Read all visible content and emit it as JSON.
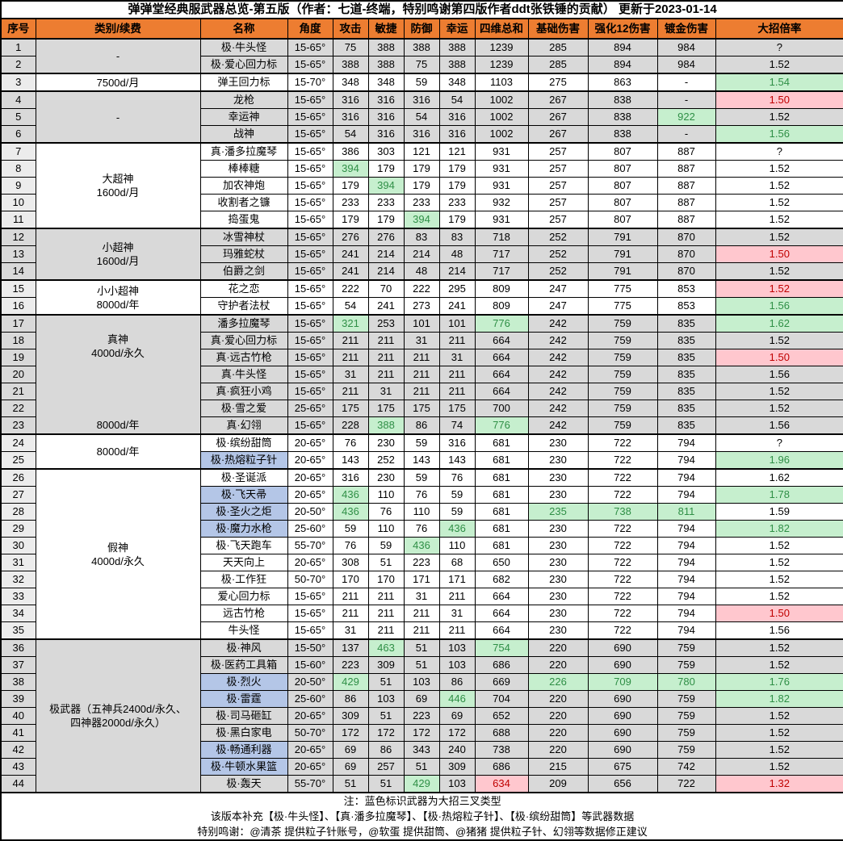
{
  "title": "弹弹堂经典服武器总览-第五版（作者：七道-终端，特别鸣谢第四版作者ddt张铁锤的贡献） 更新于2023-01-14",
  "columns": [
    "序号",
    "类别/续费",
    "名称",
    "角度",
    "攻击",
    "敏捷",
    "防御",
    "幸运",
    "四维总和",
    "基础伤害",
    "强化12伤害",
    "镀金伤害",
    "大招倍率"
  ],
  "colors": {
    "header_bg": "#ED7D31",
    "grey_row_bg": "#D9D9D9",
    "white_row_bg": "#FFFFFF",
    "index_col_bg": "#ECECEC",
    "good_cell_bg": "#C6EFCE",
    "good_cell_text": "#2F8F46",
    "bad_cell_bg": "#FFC7CE",
    "bad_cell_text": "#C00000",
    "trident_name_bg": "#B4C6E7"
  },
  "category_blocks": [
    {
      "rows": [
        1,
        2
      ],
      "shade": "grey",
      "label": "-"
    },
    {
      "rows": [
        3,
        3
      ],
      "shade": "white",
      "label": "7500d/月"
    },
    {
      "rows": [
        4,
        6
      ],
      "shade": "grey",
      "label": "-"
    },
    {
      "rows": [
        7,
        11
      ],
      "shade": "white",
      "label": "大超神\n1600d/月"
    },
    {
      "rows": [
        12,
        14
      ],
      "shade": "grey",
      "label": "小超神\n1600d/月"
    },
    {
      "rows": [
        15,
        16
      ],
      "shade": "white",
      "label": "小小超神\n8000d/年"
    },
    {
      "rows": [
        17,
        23
      ],
      "shade": "grey",
      "label": "真神\n4000d/永久",
      "label2": "8000d/年"
    },
    {
      "rows": [
        24,
        25
      ],
      "shade": "white",
      "label": "8000d/年"
    },
    {
      "rows": [
        26,
        35
      ],
      "shade": "white",
      "label": "假神\n4000d/永久"
    },
    {
      "rows": [
        36,
        44
      ],
      "shade": "grey",
      "label": "极武器（五神兵2400d/永久、\n四神器2000d/永久）"
    }
  ],
  "rows": [
    {
      "no": "1",
      "name": "极·牛头怪",
      "angle": "15-65°",
      "atk": "75",
      "agi": "388",
      "def": "388",
      "luck": "388",
      "total": "1239",
      "base": "285",
      "enh": "894",
      "gold": "984",
      "ult": "?",
      "hl": {}
    },
    {
      "no": "2",
      "name": "极·爱心回力标",
      "angle": "15-65°",
      "atk": "388",
      "agi": "388",
      "def": "75",
      "luck": "388",
      "total": "1239",
      "base": "285",
      "enh": "894",
      "gold": "984",
      "ult": "1.52",
      "hl": {}
    },
    {
      "no": "3",
      "name": "弹王回力标",
      "angle": "15-70°",
      "atk": "348",
      "agi": "348",
      "def": "59",
      "luck": "348",
      "total": "1103",
      "base": "275",
      "enh": "863",
      "gold": "-",
      "ult": "1.54",
      "hl": {
        "ult": "green"
      }
    },
    {
      "no": "4",
      "name": "龙枪",
      "angle": "15-65°",
      "atk": "316",
      "agi": "316",
      "def": "316",
      "luck": "54",
      "total": "1002",
      "base": "267",
      "enh": "838",
      "gold": "-",
      "ult": "1.50",
      "hl": {
        "ult": "pink"
      }
    },
    {
      "no": "5",
      "name": "幸运神",
      "angle": "15-65°",
      "atk": "316",
      "agi": "316",
      "def": "54",
      "luck": "316",
      "total": "1002",
      "base": "267",
      "enh": "838",
      "gold": "922",
      "ult": "1.52",
      "hl": {
        "gold": "green"
      }
    },
    {
      "no": "6",
      "name": "战神",
      "angle": "15-65°",
      "atk": "54",
      "agi": "316",
      "def": "316",
      "luck": "316",
      "total": "1002",
      "base": "267",
      "enh": "838",
      "gold": "-",
      "ult": "1.56",
      "hl": {
        "ult": "green"
      }
    },
    {
      "no": "7",
      "name": "真·潘多拉魔琴",
      "angle": "15-65°",
      "atk": "386",
      "agi": "303",
      "def": "121",
      "luck": "121",
      "total": "931",
      "base": "257",
      "enh": "807",
      "gold": "887",
      "ult": "?",
      "hl": {}
    },
    {
      "no": "8",
      "name": "棒棒糖",
      "angle": "15-65°",
      "atk": "394",
      "agi": "179",
      "def": "179",
      "luck": "179",
      "total": "931",
      "base": "257",
      "enh": "807",
      "gold": "887",
      "ult": "1.52",
      "hl": {
        "atk": "green"
      }
    },
    {
      "no": "9",
      "name": "加农神炮",
      "angle": "15-65°",
      "atk": "179",
      "agi": "394",
      "def": "179",
      "luck": "179",
      "total": "931",
      "base": "257",
      "enh": "807",
      "gold": "887",
      "ult": "1.52",
      "hl": {
        "agi": "green"
      }
    },
    {
      "no": "10",
      "name": "收割者之镰",
      "angle": "15-65°",
      "atk": "233",
      "agi": "233",
      "def": "233",
      "luck": "233",
      "total": "932",
      "base": "257",
      "enh": "807",
      "gold": "887",
      "ult": "1.52",
      "hl": {}
    },
    {
      "no": "11",
      "name": "捣蛋鬼",
      "angle": "15-65°",
      "atk": "179",
      "agi": "179",
      "def": "394",
      "luck": "179",
      "total": "931",
      "base": "257",
      "enh": "807",
      "gold": "887",
      "ult": "1.52",
      "hl": {
        "def": "green"
      }
    },
    {
      "no": "12",
      "name": "冰雪神杖",
      "angle": "15-65°",
      "atk": "276",
      "agi": "276",
      "def": "83",
      "luck": "83",
      "total": "718",
      "base": "252",
      "enh": "791",
      "gold": "870",
      "ult": "1.52",
      "hl": {}
    },
    {
      "no": "13",
      "name": "玛雅蛇杖",
      "angle": "15-65°",
      "atk": "241",
      "agi": "214",
      "def": "214",
      "luck": "48",
      "total": "717",
      "base": "252",
      "enh": "791",
      "gold": "870",
      "ult": "1.50",
      "hl": {
        "ult": "pink"
      }
    },
    {
      "no": "14",
      "name": "伯爵之剑",
      "angle": "15-65°",
      "atk": "241",
      "agi": "214",
      "def": "48",
      "luck": "214",
      "total": "717",
      "base": "252",
      "enh": "791",
      "gold": "870",
      "ult": "1.52",
      "hl": {}
    },
    {
      "no": "15",
      "name": "花之恋",
      "angle": "15-65°",
      "atk": "222",
      "agi": "70",
      "def": "222",
      "luck": "295",
      "total": "809",
      "base": "247",
      "enh": "775",
      "gold": "853",
      "ult": "1.52",
      "hl": {
        "ult": "pink"
      }
    },
    {
      "no": "16",
      "name": "守护者法杖",
      "angle": "15-65°",
      "atk": "54",
      "agi": "241",
      "def": "273",
      "luck": "241",
      "total": "809",
      "base": "247",
      "enh": "775",
      "gold": "853",
      "ult": "1.56",
      "hl": {
        "ult": "green"
      }
    },
    {
      "no": "17",
      "name": "潘多拉魔琴",
      "angle": "15-65°",
      "atk": "321",
      "agi": "253",
      "def": "101",
      "luck": "101",
      "total": "776",
      "base": "242",
      "enh": "759",
      "gold": "835",
      "ult": "1.62",
      "hl": {
        "atk": "green",
        "total": "green",
        "ult": "green"
      }
    },
    {
      "no": "18",
      "name": "真·爱心回力标",
      "angle": "15-65°",
      "atk": "211",
      "agi": "211",
      "def": "31",
      "luck": "211",
      "total": "664",
      "base": "242",
      "enh": "759",
      "gold": "835",
      "ult": "1.52",
      "hl": {}
    },
    {
      "no": "19",
      "name": "真·远古竹枪",
      "angle": "15-65°",
      "atk": "211",
      "agi": "211",
      "def": "211",
      "luck": "31",
      "total": "664",
      "base": "242",
      "enh": "759",
      "gold": "835",
      "ult": "1.50",
      "hl": {
        "ult": "pink"
      }
    },
    {
      "no": "20",
      "name": "真·牛头怪",
      "angle": "15-65°",
      "atk": "31",
      "agi": "211",
      "def": "211",
      "luck": "211",
      "total": "664",
      "base": "242",
      "enh": "759",
      "gold": "835",
      "ult": "1.56",
      "hl": {}
    },
    {
      "no": "21",
      "name": "真·疯狂小鸡",
      "angle": "15-65°",
      "atk": "211",
      "agi": "31",
      "def": "211",
      "luck": "211",
      "total": "664",
      "base": "242",
      "enh": "759",
      "gold": "835",
      "ult": "1.52",
      "hl": {}
    },
    {
      "no": "22",
      "name": "极·雪之爱",
      "angle": "25-65°",
      "atk": "175",
      "agi": "175",
      "def": "175",
      "luck": "175",
      "total": "700",
      "base": "242",
      "enh": "759",
      "gold": "835",
      "ult": "1.52",
      "hl": {}
    },
    {
      "no": "23",
      "name": "真·幻翎",
      "angle": "15-65°",
      "atk": "228",
      "agi": "388",
      "def": "86",
      "luck": "74",
      "total": "776",
      "base": "242",
      "enh": "759",
      "gold": "835",
      "ult": "1.56",
      "hl": {
        "agi": "green",
        "total": "green"
      }
    },
    {
      "no": "24",
      "name": "极·缤纷甜筒",
      "angle": "20-65°",
      "atk": "76",
      "agi": "230",
      "def": "59",
      "luck": "316",
      "total": "681",
      "base": "230",
      "enh": "722",
      "gold": "794",
      "ult": "?",
      "hl": {}
    },
    {
      "no": "25",
      "name": "极·热熔粒子针",
      "blue": true,
      "angle": "20-65°",
      "atk": "143",
      "agi": "252",
      "def": "143",
      "luck": "143",
      "total": "681",
      "base": "230",
      "enh": "722",
      "gold": "794",
      "ult": "1.96",
      "hl": {
        "ult": "green"
      }
    },
    {
      "no": "26",
      "name": "极·圣诞派",
      "angle": "20-65°",
      "atk": "316",
      "agi": "230",
      "def": "59",
      "luck": "76",
      "total": "681",
      "base": "230",
      "enh": "722",
      "gold": "794",
      "ult": "1.62",
      "hl": {}
    },
    {
      "no": "27",
      "name": "极·飞天帚",
      "blue": true,
      "angle": "20-65°",
      "atk": "436",
      "agi": "110",
      "def": "76",
      "luck": "59",
      "total": "681",
      "base": "230",
      "enh": "722",
      "gold": "794",
      "ult": "1.78",
      "hl": {
        "atk": "green",
        "ult": "green"
      }
    },
    {
      "no": "28",
      "name": "极·圣火之炬",
      "blue": true,
      "angle": "20-50°",
      "atk": "436",
      "agi": "76",
      "def": "110",
      "luck": "59",
      "total": "681",
      "base": "235",
      "enh": "738",
      "gold": "811",
      "ult": "1.59",
      "hl": {
        "atk": "green",
        "base": "green",
        "enh": "green",
        "gold": "green"
      }
    },
    {
      "no": "29",
      "name": "极·魔力水枪",
      "blue": true,
      "angle": "25-60°",
      "atk": "59",
      "agi": "110",
      "def": "76",
      "luck": "436",
      "total": "681",
      "base": "230",
      "enh": "722",
      "gold": "794",
      "ult": "1.82",
      "hl": {
        "luck": "green",
        "ult": "green"
      }
    },
    {
      "no": "30",
      "name": "极·飞天跑车",
      "angle": "55-70°",
      "atk": "76",
      "agi": "59",
      "def": "436",
      "luck": "110",
      "total": "681",
      "base": "230",
      "enh": "722",
      "gold": "794",
      "ult": "1.52",
      "hl": {
        "def": "green"
      }
    },
    {
      "no": "31",
      "name": "天天向上",
      "angle": "20-65°",
      "atk": "308",
      "agi": "51",
      "def": "223",
      "luck": "68",
      "total": "650",
      "base": "230",
      "enh": "722",
      "gold": "794",
      "ult": "1.52",
      "hl": {}
    },
    {
      "no": "32",
      "name": "极·工作狂",
      "angle": "50-70°",
      "atk": "170",
      "agi": "170",
      "def": "171",
      "luck": "171",
      "total": "682",
      "base": "230",
      "enh": "722",
      "gold": "794",
      "ult": "1.52",
      "hl": {}
    },
    {
      "no": "33",
      "name": "爱心回力标",
      "angle": "15-65°",
      "atk": "211",
      "agi": "211",
      "def": "31",
      "luck": "211",
      "total": "664",
      "base": "230",
      "enh": "722",
      "gold": "794",
      "ult": "1.52",
      "hl": {}
    },
    {
      "no": "34",
      "name": "远古竹枪",
      "angle": "15-65°",
      "atk": "211",
      "agi": "211",
      "def": "211",
      "luck": "31",
      "total": "664",
      "base": "230",
      "enh": "722",
      "gold": "794",
      "ult": "1.50",
      "hl": {
        "ult": "pink"
      }
    },
    {
      "no": "35",
      "name": "牛头怪",
      "angle": "15-65°",
      "atk": "31",
      "agi": "211",
      "def": "211",
      "luck": "211",
      "total": "664",
      "base": "230",
      "enh": "722",
      "gold": "794",
      "ult": "1.56",
      "hl": {}
    },
    {
      "no": "36",
      "name": "极·神风",
      "angle": "15-50°",
      "atk": "137",
      "agi": "463",
      "def": "51",
      "luck": "103",
      "total": "754",
      "base": "220",
      "enh": "690",
      "gold": "759",
      "ult": "1.52",
      "hl": {
        "agi": "green",
        "total": "green"
      }
    },
    {
      "no": "37",
      "name": "极·医药工具箱",
      "angle": "15-60°",
      "atk": "223",
      "agi": "309",
      "def": "51",
      "luck": "103",
      "total": "686",
      "base": "220",
      "enh": "690",
      "gold": "759",
      "ult": "1.52",
      "hl": {}
    },
    {
      "no": "38",
      "name": "极·烈火",
      "blue": true,
      "angle": "20-50°",
      "atk": "429",
      "agi": "51",
      "def": "103",
      "luck": "86",
      "total": "669",
      "base": "226",
      "enh": "709",
      "gold": "780",
      "ult": "1.76",
      "hl": {
        "atk": "green",
        "base": "green",
        "enh": "green",
        "gold": "green",
        "ult": "green"
      }
    },
    {
      "no": "39",
      "name": "极·雷霆",
      "blue": true,
      "angle": "25-60°",
      "atk": "86",
      "agi": "103",
      "def": "69",
      "luck": "446",
      "total": "704",
      "base": "220",
      "enh": "690",
      "gold": "759",
      "ult": "1.82",
      "hl": {
        "luck": "green",
        "ult": "green"
      }
    },
    {
      "no": "40",
      "name": "极·司马砸缸",
      "angle": "20-65°",
      "atk": "309",
      "agi": "51",
      "def": "223",
      "luck": "69",
      "total": "652",
      "base": "220",
      "enh": "690",
      "gold": "759",
      "ult": "1.52",
      "hl": {}
    },
    {
      "no": "41",
      "name": "极·黑白家电",
      "angle": "50-70°",
      "atk": "172",
      "agi": "172",
      "def": "172",
      "luck": "172",
      "total": "688",
      "base": "220",
      "enh": "690",
      "gold": "759",
      "ult": "1.52",
      "hl": {}
    },
    {
      "no": "42",
      "name": "极·畅通利器",
      "blue": true,
      "angle": "20-65°",
      "atk": "69",
      "agi": "86",
      "def": "343",
      "luck": "240",
      "total": "738",
      "base": "220",
      "enh": "690",
      "gold": "759",
      "ult": "1.52",
      "hl": {}
    },
    {
      "no": "43",
      "name": "极·牛顿水果篮",
      "blue": true,
      "angle": "20-65°",
      "atk": "69",
      "agi": "257",
      "def": "51",
      "luck": "309",
      "total": "686",
      "base": "215",
      "enh": "675",
      "gold": "742",
      "ult": "1.52",
      "hl": {}
    },
    {
      "no": "44",
      "name": "极·轰天",
      "angle": "55-70°",
      "atk": "51",
      "agi": "51",
      "def": "429",
      "luck": "103",
      "total": "634",
      "base": "209",
      "enh": "656",
      "gold": "722",
      "ult": "1.32",
      "hl": {
        "def": "green",
        "total": "pink",
        "ult": "pink"
      }
    }
  ],
  "notes": [
    "注：蓝色标识武器为大招三叉类型",
    "该版本补充【极·牛头怪】、【真·潘多拉魔琴】、【极·热熔粒子针】、【极·缤纷甜筒】等武器数据",
    "特别鸣谢：@清茶 提供粒子针账号，@软蛋 提供甜筒、@猪猪 提供粒子针、幻翎等数据修正建议"
  ]
}
